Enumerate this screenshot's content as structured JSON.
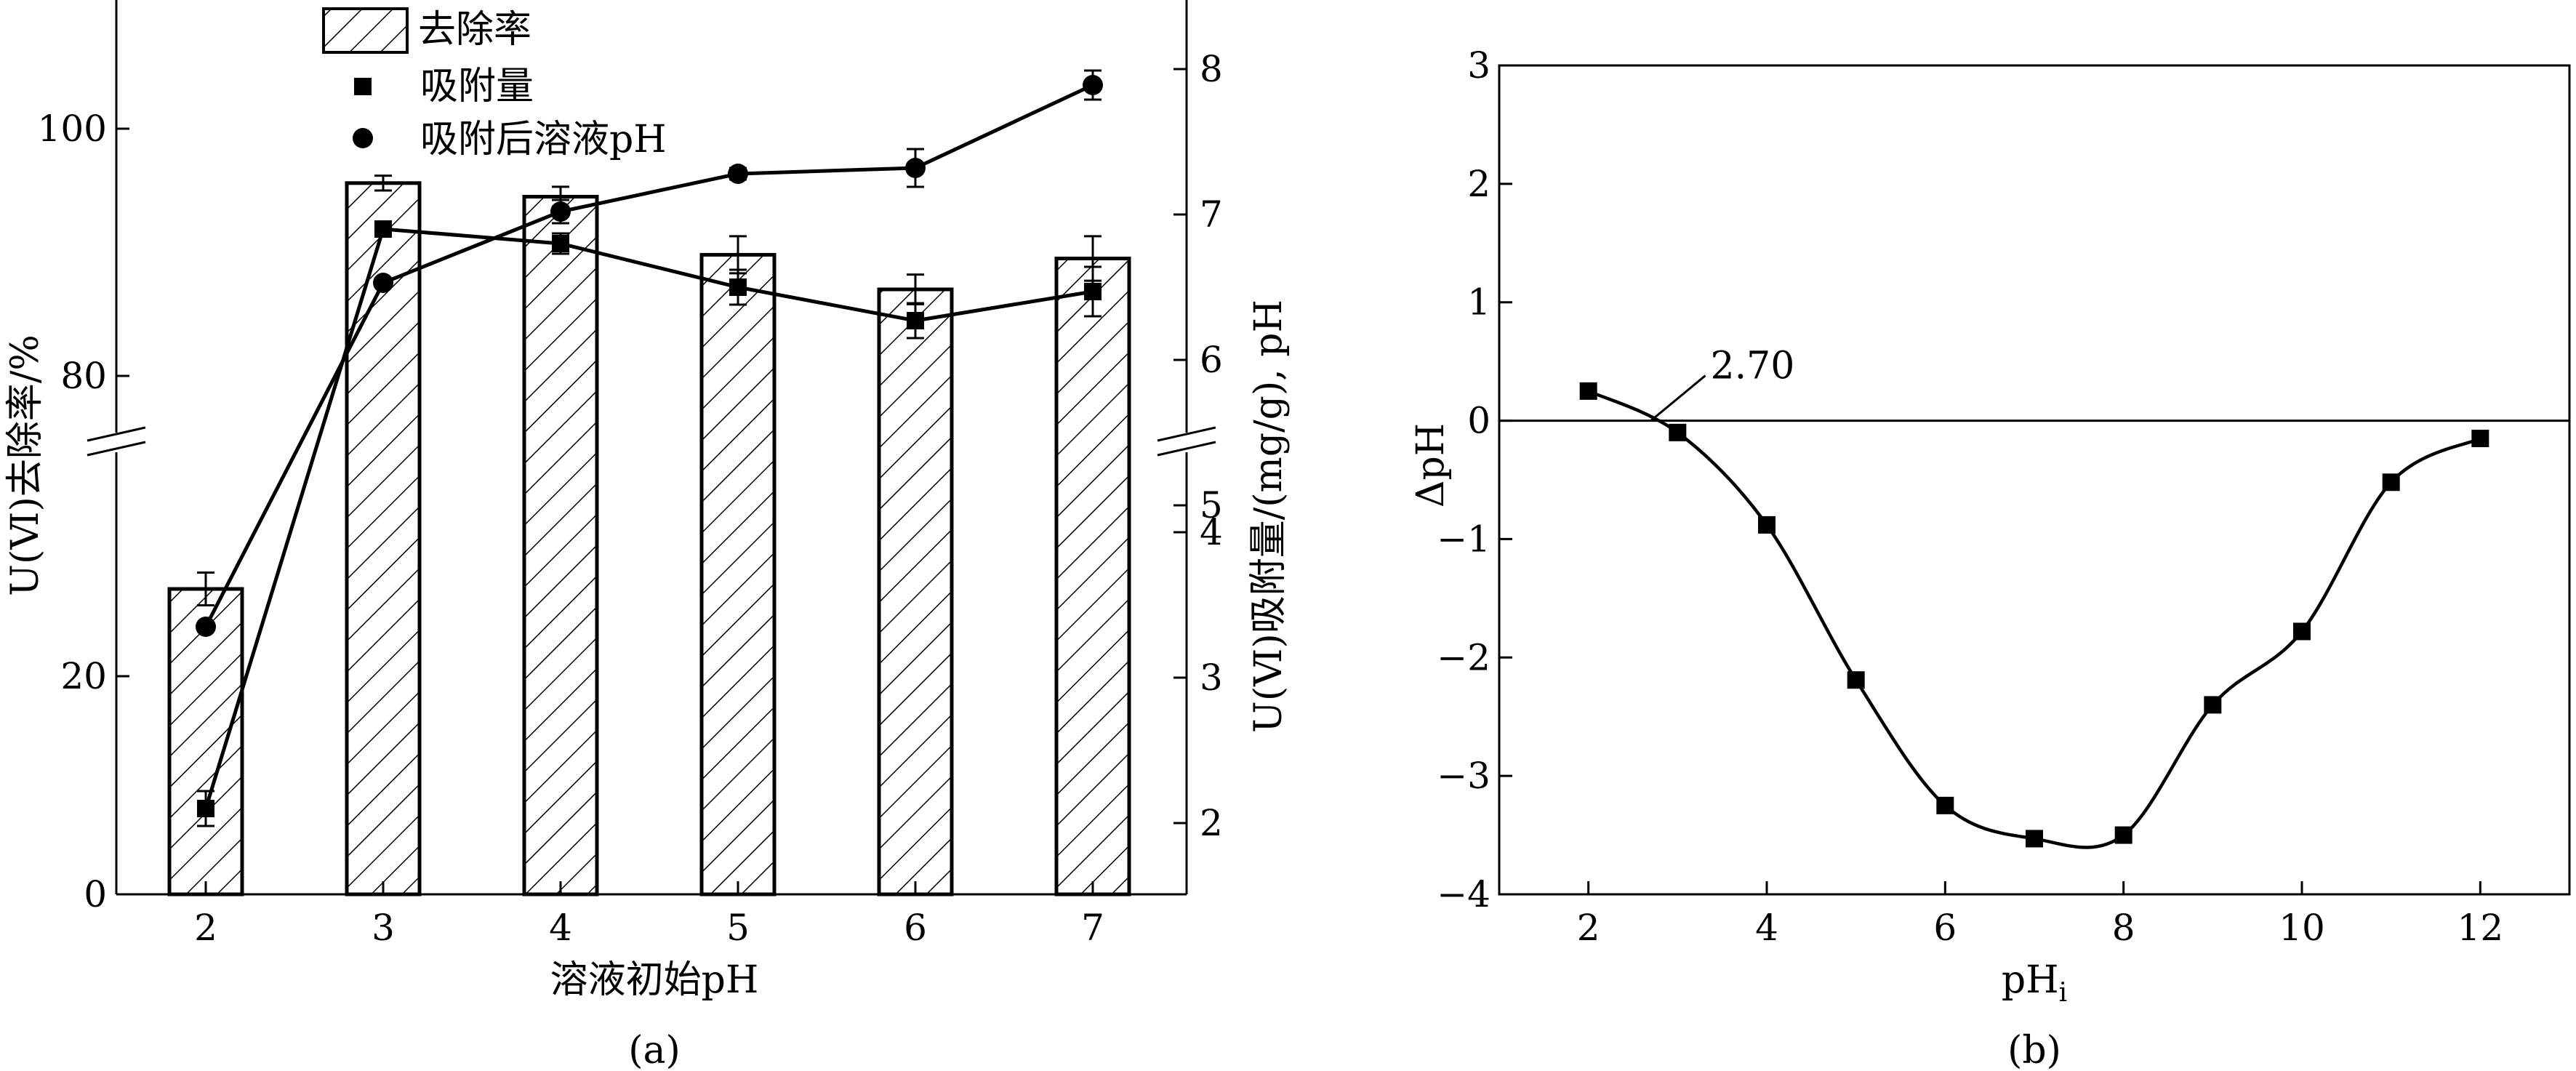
{
  "panel_labels": {
    "a": "(a)",
    "b": "(b)"
  },
  "chart_data": [
    {
      "panel": "a",
      "type": "bar",
      "categories": [
        "2",
        "3",
        "4",
        "5",
        "6",
        "7"
      ],
      "xlabel": "溶液初始pH",
      "ylabel_left": "U(Ⅵ)去除率/%",
      "ylabel_right": "U(Ⅵ)吸附量/(mg/g), pH",
      "left_axis_ticks": [
        "0",
        "20",
        "80",
        "100"
      ],
      "right_axis_ticks": [
        "2",
        "3",
        "4",
        "5",
        "6",
        "7",
        "8"
      ],
      "left_axis_break": "between 30 and 75",
      "right_axis_break": "between 4.4 and 5.6",
      "legend_position": "top-center",
      "series": [
        {
          "name": "去除率",
          "kind": "bar",
          "pattern": "diagonal-hatch",
          "values": [
            28,
            95.6,
            94.5,
            89.8,
            87,
            89.5
          ],
          "errors": [
            1.5,
            0.6,
            0.8,
            1.5,
            1.2,
            1.8
          ]
        },
        {
          "name": "吸附量",
          "kind": "line-square",
          "axis": "right",
          "values": [
            2.1,
            6.9,
            6.8,
            6.5,
            6.27,
            6.47
          ],
          "errors": [
            0.12,
            0.05,
            0.07,
            0.12,
            0.12,
            0.17
          ]
        },
        {
          "name": "吸附后溶液pH",
          "kind": "line-circle",
          "axis": "right",
          "values": [
            3.35,
            6.53,
            7.02,
            7.28,
            7.32,
            7.89
          ],
          "errors": [
            0,
            0,
            0.08,
            0.04,
            0.13,
            0.1
          ]
        }
      ]
    },
    {
      "panel": "b",
      "type": "line",
      "xlabel": "pH",
      "xlabel_subscript": "i",
      "ylabel": "ΔpH",
      "x": [
        2,
        3,
        4,
        5,
        6,
        7,
        8,
        9,
        10,
        11,
        12
      ],
      "y": [
        0.25,
        -0.1,
        -0.88,
        -2.19,
        -3.25,
        -3.53,
        -3.5,
        -2.4,
        -1.78,
        -0.52,
        -0.15
      ],
      "xlim": [
        1,
        13
      ],
      "ylim": [
        -4,
        3
      ],
      "x_ticks": [
        "2",
        "4",
        "6",
        "8",
        "10",
        "12"
      ],
      "y_ticks": [
        "−4",
        "−3",
        "−2",
        "−1",
        "0",
        "1",
        "2",
        "3"
      ],
      "zero_line": true,
      "annotation": {
        "text": "2.70",
        "x": 2.7,
        "y": 0
      }
    }
  ]
}
